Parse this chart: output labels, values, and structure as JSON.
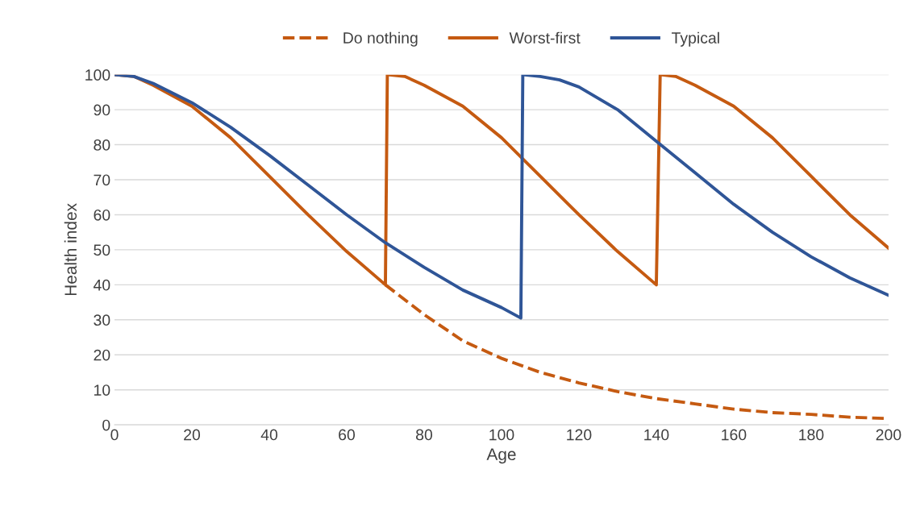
{
  "chart_data": {
    "type": "line",
    "xlabel": "Age",
    "ylabel": "Health index",
    "xlim": [
      0,
      200
    ],
    "ylim": [
      0,
      100
    ],
    "xticks": [
      0,
      20,
      40,
      60,
      80,
      100,
      120,
      140,
      160,
      180,
      200
    ],
    "yticks": [
      0,
      10,
      20,
      30,
      40,
      50,
      60,
      70,
      80,
      90,
      100
    ],
    "grid": "y",
    "legend": "top",
    "series": [
      {
        "name": "Do nothing",
        "color": "#c55a11",
        "line_style": "dashed",
        "x": [
          70,
          80,
          90,
          100,
          110,
          120,
          130,
          140,
          150,
          160,
          170,
          180,
          190,
          200
        ],
        "values": [
          40,
          31.5,
          24,
          19,
          15,
          12,
          9.5,
          7.5,
          6,
          4.5,
          3.5,
          3,
          2.2,
          1.8
        ]
      },
      {
        "name": "Worst-first",
        "color": "#c55a11",
        "line_style": "solid",
        "x": [
          0,
          5,
          10,
          20,
          30,
          40,
          50,
          60,
          70,
          70.5,
          75,
          80,
          90,
          100,
          110,
          120,
          130,
          140,
          141,
          145,
          150,
          160,
          170,
          180,
          190,
          200
        ],
        "values": [
          100,
          99.5,
          97,
          91,
          82,
          71,
          60,
          49.5,
          40,
          100,
          99.5,
          97,
          91,
          82,
          71,
          60,
          49.5,
          40,
          100,
          99.5,
          97,
          91,
          82,
          71,
          60,
          50.5
        ]
      },
      {
        "name": "Typical",
        "color": "#2f5597",
        "line_style": "solid",
        "x": [
          0,
          5,
          10,
          20,
          30,
          40,
          50,
          60,
          70,
          80,
          90,
          100,
          105,
          105.5,
          110,
          115,
          120,
          130,
          140,
          150,
          160,
          170,
          180,
          190,
          200
        ],
        "values": [
          100,
          99.5,
          97.5,
          92,
          85,
          77,
          68.5,
          60,
          52,
          45,
          38.5,
          33.5,
          30.5,
          100,
          99.5,
          98.5,
          96.5,
          90,
          81,
          72,
          63,
          55,
          48,
          42,
          37
        ]
      }
    ]
  }
}
